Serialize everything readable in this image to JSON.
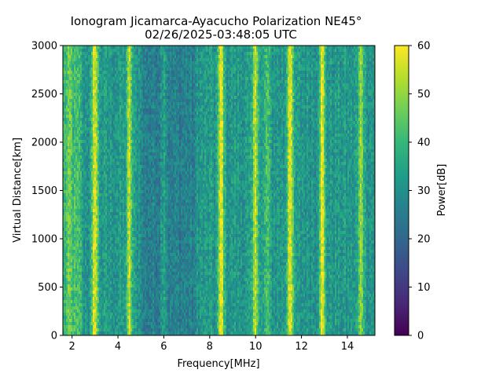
{
  "chart_data": {
    "type": "heatmap",
    "title": "Ionogram Jicamarca-Ayacucho Polarization NE45°",
    "subtitle": "02/26/2025-03:48:05 UTC",
    "xlabel": "Frequency[MHz]",
    "ylabel": "Virtual Distance[km]",
    "xlim": [
      1.6,
      15.2
    ],
    "ylim": [
      0,
      3000
    ],
    "xticks": [
      2,
      4,
      6,
      8,
      10,
      12,
      14
    ],
    "yticks": [
      0,
      500,
      1000,
      1500,
      2000,
      2500,
      3000
    ],
    "colorbar": {
      "label": "Power[dB]",
      "range": [
        0,
        60
      ],
      "ticks": [
        0,
        10,
        20,
        30,
        40,
        50,
        60
      ],
      "colormap": "viridis"
    },
    "background_power_db": 32,
    "background_regions": [
      {
        "freq_range": [
          1.6,
          2.4
        ],
        "power_db": 40
      },
      {
        "freq_range": [
          5.0,
          7.4
        ],
        "power_db": 26
      }
    ],
    "bands": [
      {
        "freq_mhz": 1.9,
        "power_db": 45
      },
      {
        "freq_mhz": 3.0,
        "power_db": 58
      },
      {
        "freq_mhz": 4.5,
        "power_db": 52
      },
      {
        "freq_mhz": 6.0,
        "power_db": 36
      },
      {
        "freq_mhz": 8.5,
        "power_db": 58
      },
      {
        "freq_mhz": 10.0,
        "power_db": 55
      },
      {
        "freq_mhz": 10.5,
        "power_db": 42
      },
      {
        "freq_mhz": 11.5,
        "power_db": 60
      },
      {
        "freq_mhz": 12.9,
        "power_db": 57
      },
      {
        "freq_mhz": 14.6,
        "power_db": 50
      }
    ],
    "grid": false
  }
}
